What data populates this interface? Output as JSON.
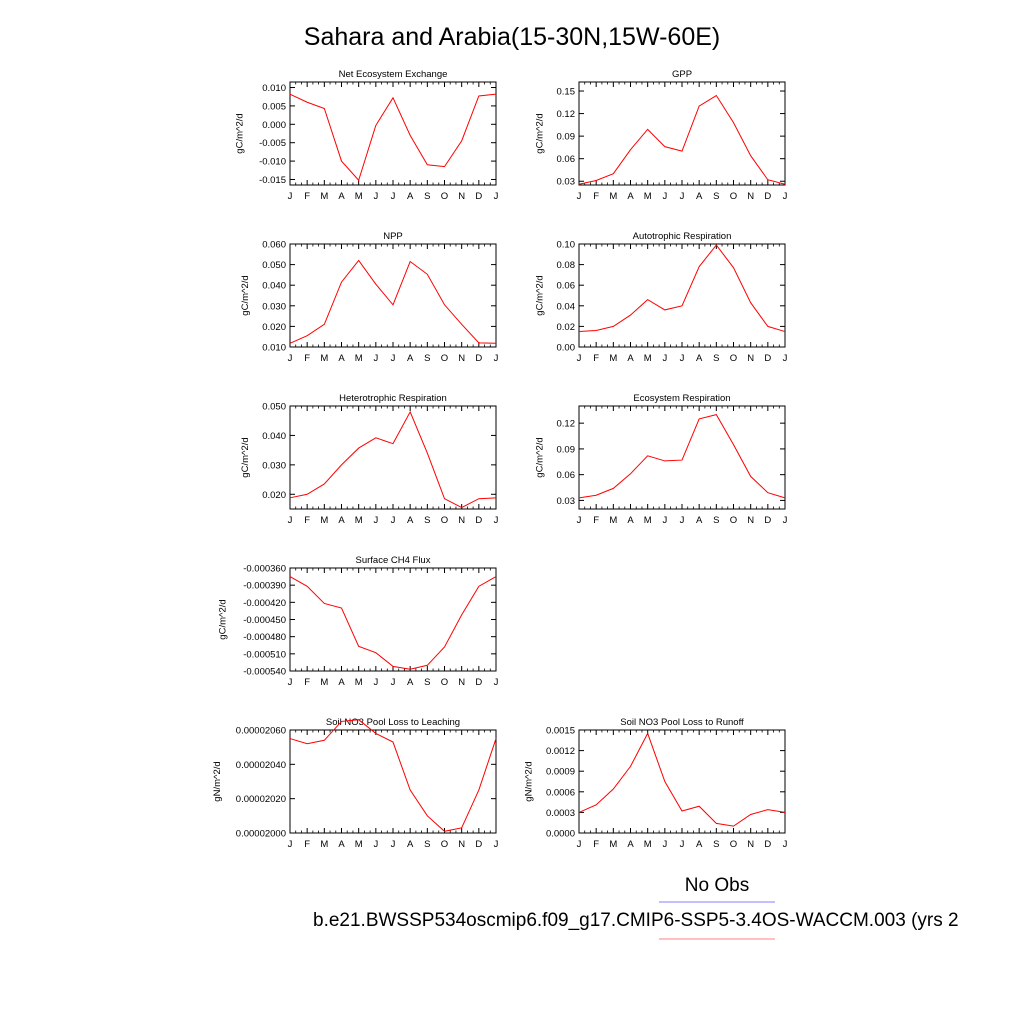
{
  "title": "Sahara and Arabia(15-30N,15W-60E)",
  "line_color": "#ff0000",
  "legend": {
    "no_obs_label": "No Obs",
    "no_obs_color": "#8080ff",
    "model_label": "b.e21.BWSSP534oscmip6.f09_g17.CMIP6-SSP5-3.4OS-WACCM.003 (yrs 2",
    "model_color": "#ff8080"
  },
  "month_labels": [
    "J",
    "F",
    "M",
    "A",
    "M",
    "J",
    "J",
    "A",
    "S",
    "O",
    "N",
    "D",
    "J"
  ],
  "chart_data": [
    {
      "type": "line",
      "title": "Net Ecosystem Exchange",
      "ylabel": "gC/m^2/d",
      "categories": [
        "J",
        "F",
        "M",
        "A",
        "M",
        "J",
        "J",
        "A",
        "S",
        "O",
        "N",
        "D",
        "J"
      ],
      "ylim": [
        -0.0165,
        0.0115
      ],
      "yticks": [
        "0.010",
        "0.005",
        "0.000",
        "-0.005",
        "-0.010",
        "-0.015"
      ],
      "series": [
        {
          "values": [
            0.0082,
            0.006,
            0.0043,
            -0.01,
            -0.0152,
            -0.0003,
            0.0072,
            -0.003,
            -0.011,
            -0.0115,
            -0.0045,
            0.0077,
            0.0082
          ]
        }
      ]
    },
    {
      "type": "line",
      "title": "GPP",
      "ylabel": "gC/m^2/d",
      "categories": [
        "J",
        "F",
        "M",
        "A",
        "M",
        "J",
        "J",
        "A",
        "S",
        "O",
        "N",
        "D",
        "J"
      ],
      "ylim": [
        0.025,
        0.162
      ],
      "yticks": [
        "0.15",
        "0.12",
        "0.09",
        "0.06",
        "0.03"
      ],
      "series": [
        {
          "values": [
            0.026,
            0.031,
            0.04,
            0.072,
            0.099,
            0.076,
            0.07,
            0.13,
            0.144,
            0.108,
            0.064,
            0.032,
            0.026
          ]
        }
      ]
    },
    {
      "type": "line",
      "title": "NPP",
      "ylabel": "gC/m^2/d",
      "categories": [
        "J",
        "F",
        "M",
        "A",
        "M",
        "J",
        "J",
        "A",
        "S",
        "O",
        "N",
        "D",
        "J"
      ],
      "ylim": [
        0.01,
        0.06
      ],
      "yticks": [
        "0.060",
        "0.050",
        "0.040",
        "0.030",
        "0.020",
        "0.010"
      ],
      "series": [
        {
          "values": [
            0.0118,
            0.0155,
            0.021,
            0.0415,
            0.052,
            0.0405,
            0.0305,
            0.0515,
            0.0453,
            0.0305,
            0.021,
            0.012,
            0.0118
          ]
        }
      ]
    },
    {
      "type": "line",
      "title": "Autotrophic Respiration",
      "ylabel": "gC/m^2/d",
      "categories": [
        "J",
        "F",
        "M",
        "A",
        "M",
        "J",
        "J",
        "A",
        "S",
        "O",
        "N",
        "D",
        "J"
      ],
      "ylim": [
        0.0,
        0.1
      ],
      "yticks": [
        "0.10",
        "0.08",
        "0.06",
        "0.04",
        "0.02",
        "0.00"
      ],
      "series": [
        {
          "values": [
            0.015,
            0.016,
            0.02,
            0.031,
            0.046,
            0.036,
            0.04,
            0.078,
            0.099,
            0.077,
            0.043,
            0.02,
            0.015
          ]
        }
      ]
    },
    {
      "type": "line",
      "title": "Heterotrophic Respiration",
      "ylabel": "gC/m^2/d",
      "categories": [
        "J",
        "F",
        "M",
        "A",
        "M",
        "J",
        "J",
        "A",
        "S",
        "O",
        "N",
        "D",
        "J"
      ],
      "ylim": [
        0.015,
        0.05
      ],
      "yticks": [
        "0.050",
        "0.040",
        "0.030",
        "0.020"
      ],
      "series": [
        {
          "values": [
            0.0188,
            0.02,
            0.0235,
            0.03,
            0.0357,
            0.0392,
            0.0372,
            0.048,
            0.034,
            0.0185,
            0.0155,
            0.0185,
            0.0188
          ]
        }
      ]
    },
    {
      "type": "line",
      "title": "Ecosystem Respiration",
      "ylabel": "gC/m^2/d",
      "categories": [
        "J",
        "F",
        "M",
        "A",
        "M",
        "J",
        "J",
        "A",
        "S",
        "O",
        "N",
        "D",
        "J"
      ],
      "ylim": [
        0.02,
        0.14
      ],
      "yticks": [
        "0.12",
        "0.09",
        "0.06",
        "0.03"
      ],
      "series": [
        {
          "values": [
            0.033,
            0.036,
            0.044,
            0.061,
            0.082,
            0.076,
            0.077,
            0.125,
            0.13,
            0.095,
            0.058,
            0.039,
            0.033
          ]
        }
      ]
    },
    {
      "type": "line",
      "title": "Surface CH4 Flux",
      "ylabel": "gC/m^2/d",
      "categories": [
        "J",
        "F",
        "M",
        "A",
        "M",
        "J",
        "J",
        "A",
        "S",
        "O",
        "N",
        "D",
        "J"
      ],
      "ylim": [
        -0.00054,
        -0.00036
      ],
      "yticks": [
        "-0.000360",
        "-0.000390",
        "-0.000420",
        "-0.000450",
        "-0.000480",
        "-0.000510",
        "-0.000540"
      ],
      "series": [
        {
          "values": [
            -0.000375,
            -0.000392,
            -0.000422,
            -0.00043,
            -0.000497,
            -0.000508,
            -0.000532,
            -0.000537,
            -0.00053,
            -0.000498,
            -0.000442,
            -0.000392,
            -0.000375
          ]
        }
      ]
    },
    {
      "type": "line",
      "title": "Soil NO3 Pool Loss to Leaching",
      "ylabel": "gN/m^2/d",
      "categories": [
        "J",
        "F",
        "M",
        "A",
        "M",
        "J",
        "J",
        "A",
        "S",
        "O",
        "N",
        "D",
        "J"
      ],
      "ylim": [
        2e-05,
        2.06e-05
      ],
      "yticks": [
        "0.00002060",
        "0.00002040",
        "0.00002020",
        "0.00002000"
      ],
      "series": [
        {
          "values": [
            2.055e-05,
            2.052e-05,
            2.054e-05,
            2.065e-05,
            2.066e-05,
            2.058e-05,
            2.053e-05,
            2.025e-05,
            2.01e-05,
            2.001e-05,
            2.003e-05,
            2.025e-05,
            2.055e-05
          ]
        }
      ]
    },
    {
      "type": "line",
      "title": "Soil NO3 Pool Loss to Runoff",
      "ylabel": "gN/m^2/d",
      "categories": [
        "J",
        "F",
        "M",
        "A",
        "M",
        "J",
        "J",
        "A",
        "S",
        "O",
        "N",
        "D",
        "J"
      ],
      "ylim": [
        0.0,
        0.0015
      ],
      "yticks": [
        "0.0015",
        "0.0012",
        "0.0009",
        "0.0006",
        "0.0003",
        "0.0000"
      ],
      "series": [
        {
          "values": [
            0.0003,
            0.00041,
            0.00064,
            0.00097,
            0.00145,
            0.00075,
            0.00032,
            0.00039,
            0.00014,
            0.0001,
            0.00027,
            0.00034,
            0.0003
          ]
        }
      ]
    }
  ]
}
